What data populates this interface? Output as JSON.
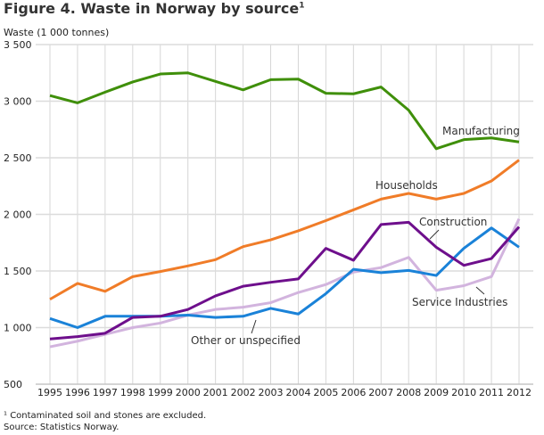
{
  "chart_data": {
    "type": "line",
    "title": "Figure 4. Waste in Norway by source",
    "title_footnote_mark": "1",
    "ylabel": "Waste (1 000 tonnes)",
    "xlabel": "",
    "ylim": [
      500,
      3500
    ],
    "yticks": [
      500,
      1000,
      1500,
      2000,
      2500,
      3000,
      3500
    ],
    "ytick_labels": [
      "500",
      "1 000",
      "1 500",
      "2 000",
      "2 500",
      "3 000",
      "3 500"
    ],
    "x": [
      "1995",
      "1996",
      "1997",
      "1998",
      "1999",
      "2000",
      "2001",
      "2002",
      "2003",
      "2004",
      "2005",
      "2006",
      "2007",
      "2008",
      "2009",
      "2010",
      "2011",
      "2012"
    ],
    "grid": true,
    "series": [
      {
        "name": "Manufacturing",
        "color": "#3f8f0a",
        "values": [
          3050,
          2985,
          3080,
          3170,
          3240,
          3250,
          3175,
          3100,
          3190,
          3195,
          3070,
          3065,
          3125,
          2920,
          2580,
          2660,
          2675,
          2640
        ]
      },
      {
        "name": "Households",
        "color": "#f07c28",
        "values": [
          1250,
          1390,
          1320,
          1450,
          1495,
          1545,
          1600,
          1715,
          1775,
          1855,
          1945,
          2040,
          2135,
          2185,
          2135,
          2185,
          2295,
          2480
        ]
      },
      {
        "name": "Other or unspecified",
        "color": "#1a82d8",
        "values": [
          1080,
          1000,
          1100,
          1100,
          1100,
          1110,
          1090,
          1100,
          1170,
          1120,
          1300,
          1515,
          1485,
          1505,
          1460,
          1700,
          1880,
          1710
        ]
      },
      {
        "name": "Construction",
        "color": "#6e0f8c",
        "values": [
          900,
          920,
          950,
          1090,
          1100,
          1160,
          1280,
          1365,
          1400,
          1430,
          1700,
          1595,
          1910,
          1930,
          1710,
          1550,
          1610,
          1890
        ]
      },
      {
        "name": "Service Industries",
        "color": "#d2b4de",
        "values": [
          830,
          880,
          940,
          1000,
          1040,
          1110,
          1160,
          1180,
          1220,
          1310,
          1380,
          1490,
          1530,
          1620,
          1330,
          1370,
          1450,
          1960
        ]
      }
    ]
  },
  "footnotes": {
    "note1": "¹ Contaminated soil and stones are excluded.",
    "source": "Source: Statistics Norway."
  }
}
